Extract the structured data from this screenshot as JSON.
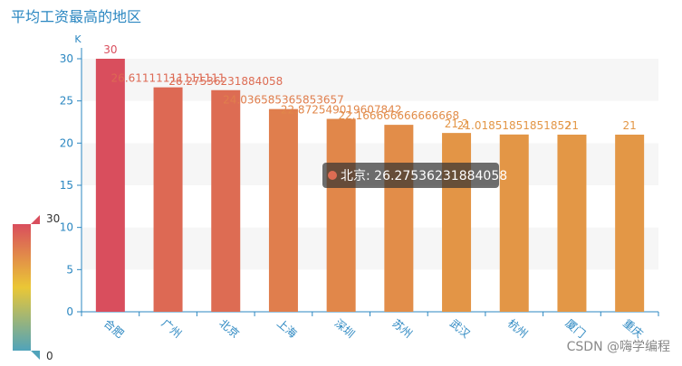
{
  "chart_data": {
    "type": "bar",
    "title": "平均工资最高的地区",
    "y_unit": "K",
    "categories": [
      "合肥",
      "广州",
      "北京",
      "上海",
      "深圳",
      "苏州",
      "武汉",
      "杭州",
      "厦门",
      "重庆"
    ],
    "values": [
      30,
      26.61111111111111,
      26.27536231884058,
      24.036585365853657,
      22.872549019607842,
      22.166666666666668,
      21.2,
      21.01851851851852,
      21,
      21
    ],
    "ylim": [
      0,
      30
    ],
    "yticks": [
      0,
      5,
      10,
      15,
      20,
      25,
      30
    ],
    "visual_map": {
      "min": 0,
      "max": 30,
      "colors": [
        "#50a3ba",
        "#eac736",
        "#d94e5d"
      ]
    },
    "tooltip": "北京: 26.27536231884058",
    "watermark": "CSDN @嗨学编程"
  }
}
